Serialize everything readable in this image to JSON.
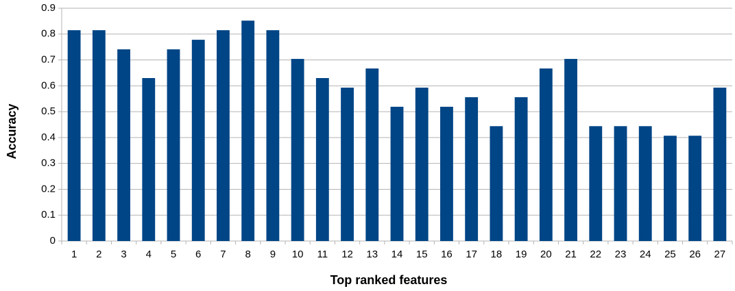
{
  "chart_data": {
    "type": "bar",
    "xlabel": "Top ranked features",
    "ylabel": "Accuracy",
    "categories": [
      "1",
      "2",
      "3",
      "4",
      "5",
      "6",
      "7",
      "8",
      "9",
      "10",
      "11",
      "12",
      "13",
      "14",
      "15",
      "16",
      "17",
      "18",
      "19",
      "20",
      "21",
      "22",
      "23",
      "24",
      "25",
      "26",
      "27"
    ],
    "values": [
      0.815,
      0.815,
      0.741,
      0.63,
      0.741,
      0.778,
      0.815,
      0.852,
      0.815,
      0.704,
      0.63,
      0.593,
      0.667,
      0.519,
      0.593,
      0.519,
      0.556,
      0.444,
      0.556,
      0.667,
      0.704,
      0.444,
      0.444,
      0.444,
      0.407,
      0.407,
      0.593
    ],
    "color": "#004586",
    "ylim": [
      0,
      0.9
    ],
    "yticks": [
      0,
      0.1,
      0.2,
      0.3,
      0.4,
      0.5,
      0.6,
      0.7,
      0.8,
      0.9
    ],
    "grid": true
  }
}
